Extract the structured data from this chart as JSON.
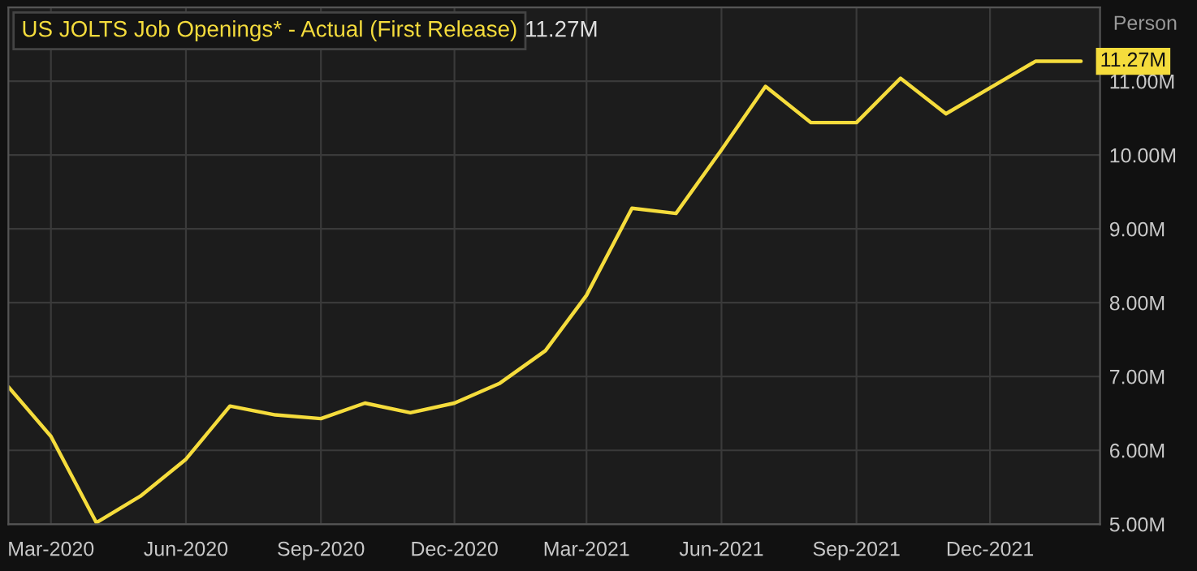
{
  "chart_data": {
    "type": "line",
    "title": "US JOLTS Job Openings* - Actual (First Release)",
    "ylabel": "Person",
    "annotations": [
      "11.27M",
      {
        "text": "11.27M",
        "x": "2022-02",
        "y": 11.27
      }
    ],
    "x": [
      "2020-02",
      "2020-03",
      "2020-04",
      "2020-05",
      "2020-06",
      "2020-07",
      "2020-08",
      "2020-09",
      "2020-10",
      "2020-11",
      "2020-12",
      "2021-01",
      "2021-02",
      "2021-03",
      "2021-04",
      "2021-05",
      "2021-06",
      "2021-07",
      "2021-08",
      "2021-09",
      "2021-10",
      "2021-11",
      "2021-12",
      "2022-01",
      "2022-02"
    ],
    "series": [
      {
        "color": "#f5dc3c",
        "values": [
          6.86,
          6.19,
          5.02,
          5.38,
          5.88,
          6.6,
          6.48,
          6.43,
          6.64,
          6.51,
          6.64,
          6.91,
          7.35,
          8.1,
          9.28,
          9.21,
          10.07,
          10.93,
          10.44,
          10.44,
          11.04,
          10.56,
          10.91,
          11.27,
          11.27
        ]
      }
    ],
    "xlim": [
      "2020-02",
      "2022-02-14"
    ],
    "xticks": [
      {
        "value": "2020-03",
        "label": "Mar-2020"
      },
      {
        "value": "2020-06",
        "label": "Jun-2020"
      },
      {
        "value": "2020-09",
        "label": "Sep-2020"
      },
      {
        "value": "2020-12",
        "label": "Dec-2020"
      },
      {
        "value": "2021-03",
        "label": "Mar-2021"
      },
      {
        "value": "2021-06",
        "label": "Jun-2021"
      },
      {
        "value": "2021-09",
        "label": "Sep-2021"
      },
      {
        "value": "2021-12",
        "label": "Dec-2021"
      }
    ],
    "ylim": [
      5,
      12
    ],
    "yticks": [
      {
        "value": 5,
        "label": "5.00M"
      },
      {
        "value": 6,
        "label": "6.00M"
      },
      {
        "value": 7,
        "label": "7.00M"
      },
      {
        "value": 8,
        "label": "8.00M"
      },
      {
        "value": 9,
        "label": "9.00M"
      },
      {
        "value": 10,
        "label": "10.00M"
      },
      {
        "value": 11,
        "label": "11.00M"
      }
    ],
    "grid": true,
    "legend": false,
    "marker": "none",
    "line_style": "solid"
  }
}
